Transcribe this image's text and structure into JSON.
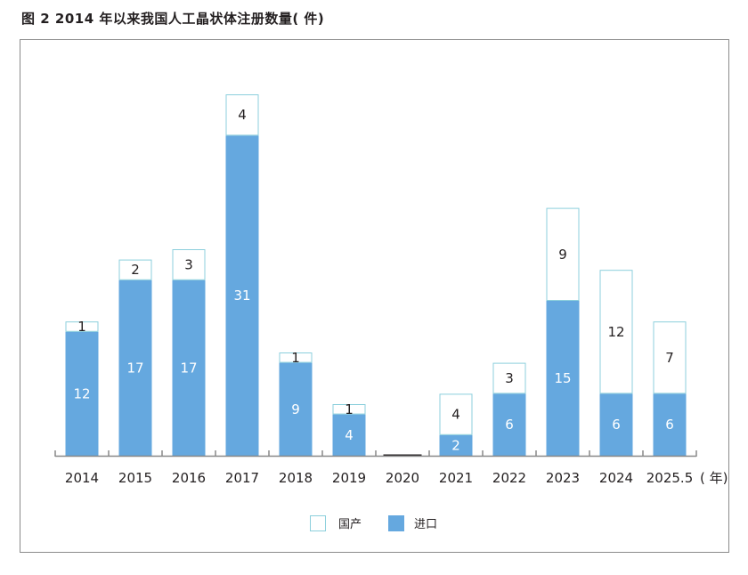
{
  "title": "图 2   2014 年以来我国人工晶状体注册数量( 件)",
  "chart_data": {
    "type": "bar",
    "stacked": true,
    "categories": [
      "2014",
      "2015",
      "2016",
      "2017",
      "2018",
      "2019",
      "2020",
      "2021",
      "2022",
      "2023",
      "2024",
      "2025.5"
    ],
    "series": [
      {
        "name": "进口",
        "values": [
          12,
          17,
          17,
          31,
          9,
          4,
          0,
          2,
          6,
          15,
          6,
          6
        ],
        "color": "#65a8df"
      },
      {
        "name": "国产",
        "values": [
          1,
          2,
          3,
          4,
          1,
          1,
          0,
          4,
          3,
          9,
          12,
          7
        ],
        "color": "#ffffff",
        "stroke": "#8ccfdc"
      }
    ],
    "x_unit": "( 年)",
    "ylim": [
      0,
      35
    ],
    "grid": false,
    "legend": "bottom-center"
  }
}
